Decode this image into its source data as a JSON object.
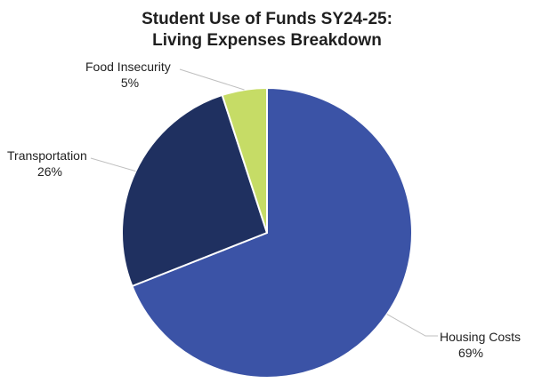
{
  "chart_data": {
    "type": "pie",
    "title": "Student Use of Funds SY24-25:",
    "subtitle": "Living Expenses Breakdown",
    "slices": [
      {
        "label": "Housing Costs",
        "value": 69,
        "value_label": "69%",
        "color": "#3b53a6"
      },
      {
        "label": "Transportation",
        "value": 26,
        "value_label": "26%",
        "color": "#1f3060"
      },
      {
        "label": "Food Insecurity",
        "value": 5,
        "value_label": "5%",
        "color": "#c6dc66"
      }
    ],
    "start_angle_deg": 0,
    "direction": "clockwise",
    "slice_border_color": "#ffffff",
    "leader_line_color": "#bfbfbf",
    "legend": "none"
  }
}
